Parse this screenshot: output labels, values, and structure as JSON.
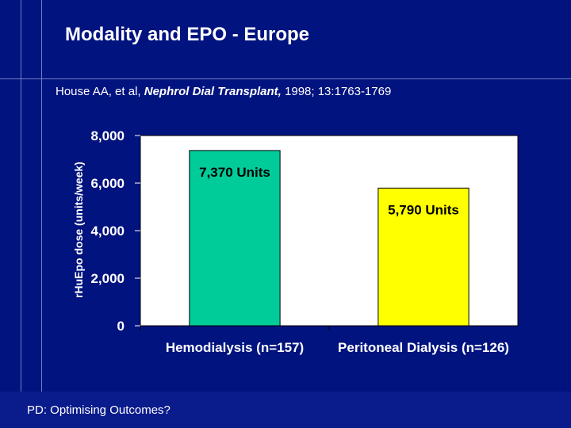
{
  "slide": {
    "title": "Modality and EPO - Europe",
    "citation": {
      "authors": "House AA, et al,",
      "journal": "Nephrol Dial Transplant,",
      "details": "1998; 13:1763-1769"
    },
    "footer": "PD: Optimising Outcomes?"
  },
  "colors": {
    "background": "#01137f",
    "plot_area": "#ffffff",
    "hemodialysis_bar": "#00cc99",
    "peritoneal_bar": "#ffff00",
    "text": "#ffffff"
  },
  "chart_data": {
    "type": "bar",
    "title": "",
    "xlabel": "",
    "ylabel": "rHuEpo dose (units/week)",
    "ylim": [
      0,
      8000
    ],
    "yticks": [
      0,
      2000,
      4000,
      6000,
      8000
    ],
    "ytick_labels": [
      "0",
      "2,000",
      "4,000",
      "6,000",
      "8,000"
    ],
    "categories": [
      "Hemodialysis (n=157)",
      "Peritoneal Dialysis (n=126)"
    ],
    "values": [
      7370,
      5790
    ],
    "data_labels": [
      "7,370 Units",
      "5,790 Units"
    ],
    "bar_colors": [
      "#00cc99",
      "#ffff00"
    ],
    "grid": false,
    "legend": "none"
  }
}
